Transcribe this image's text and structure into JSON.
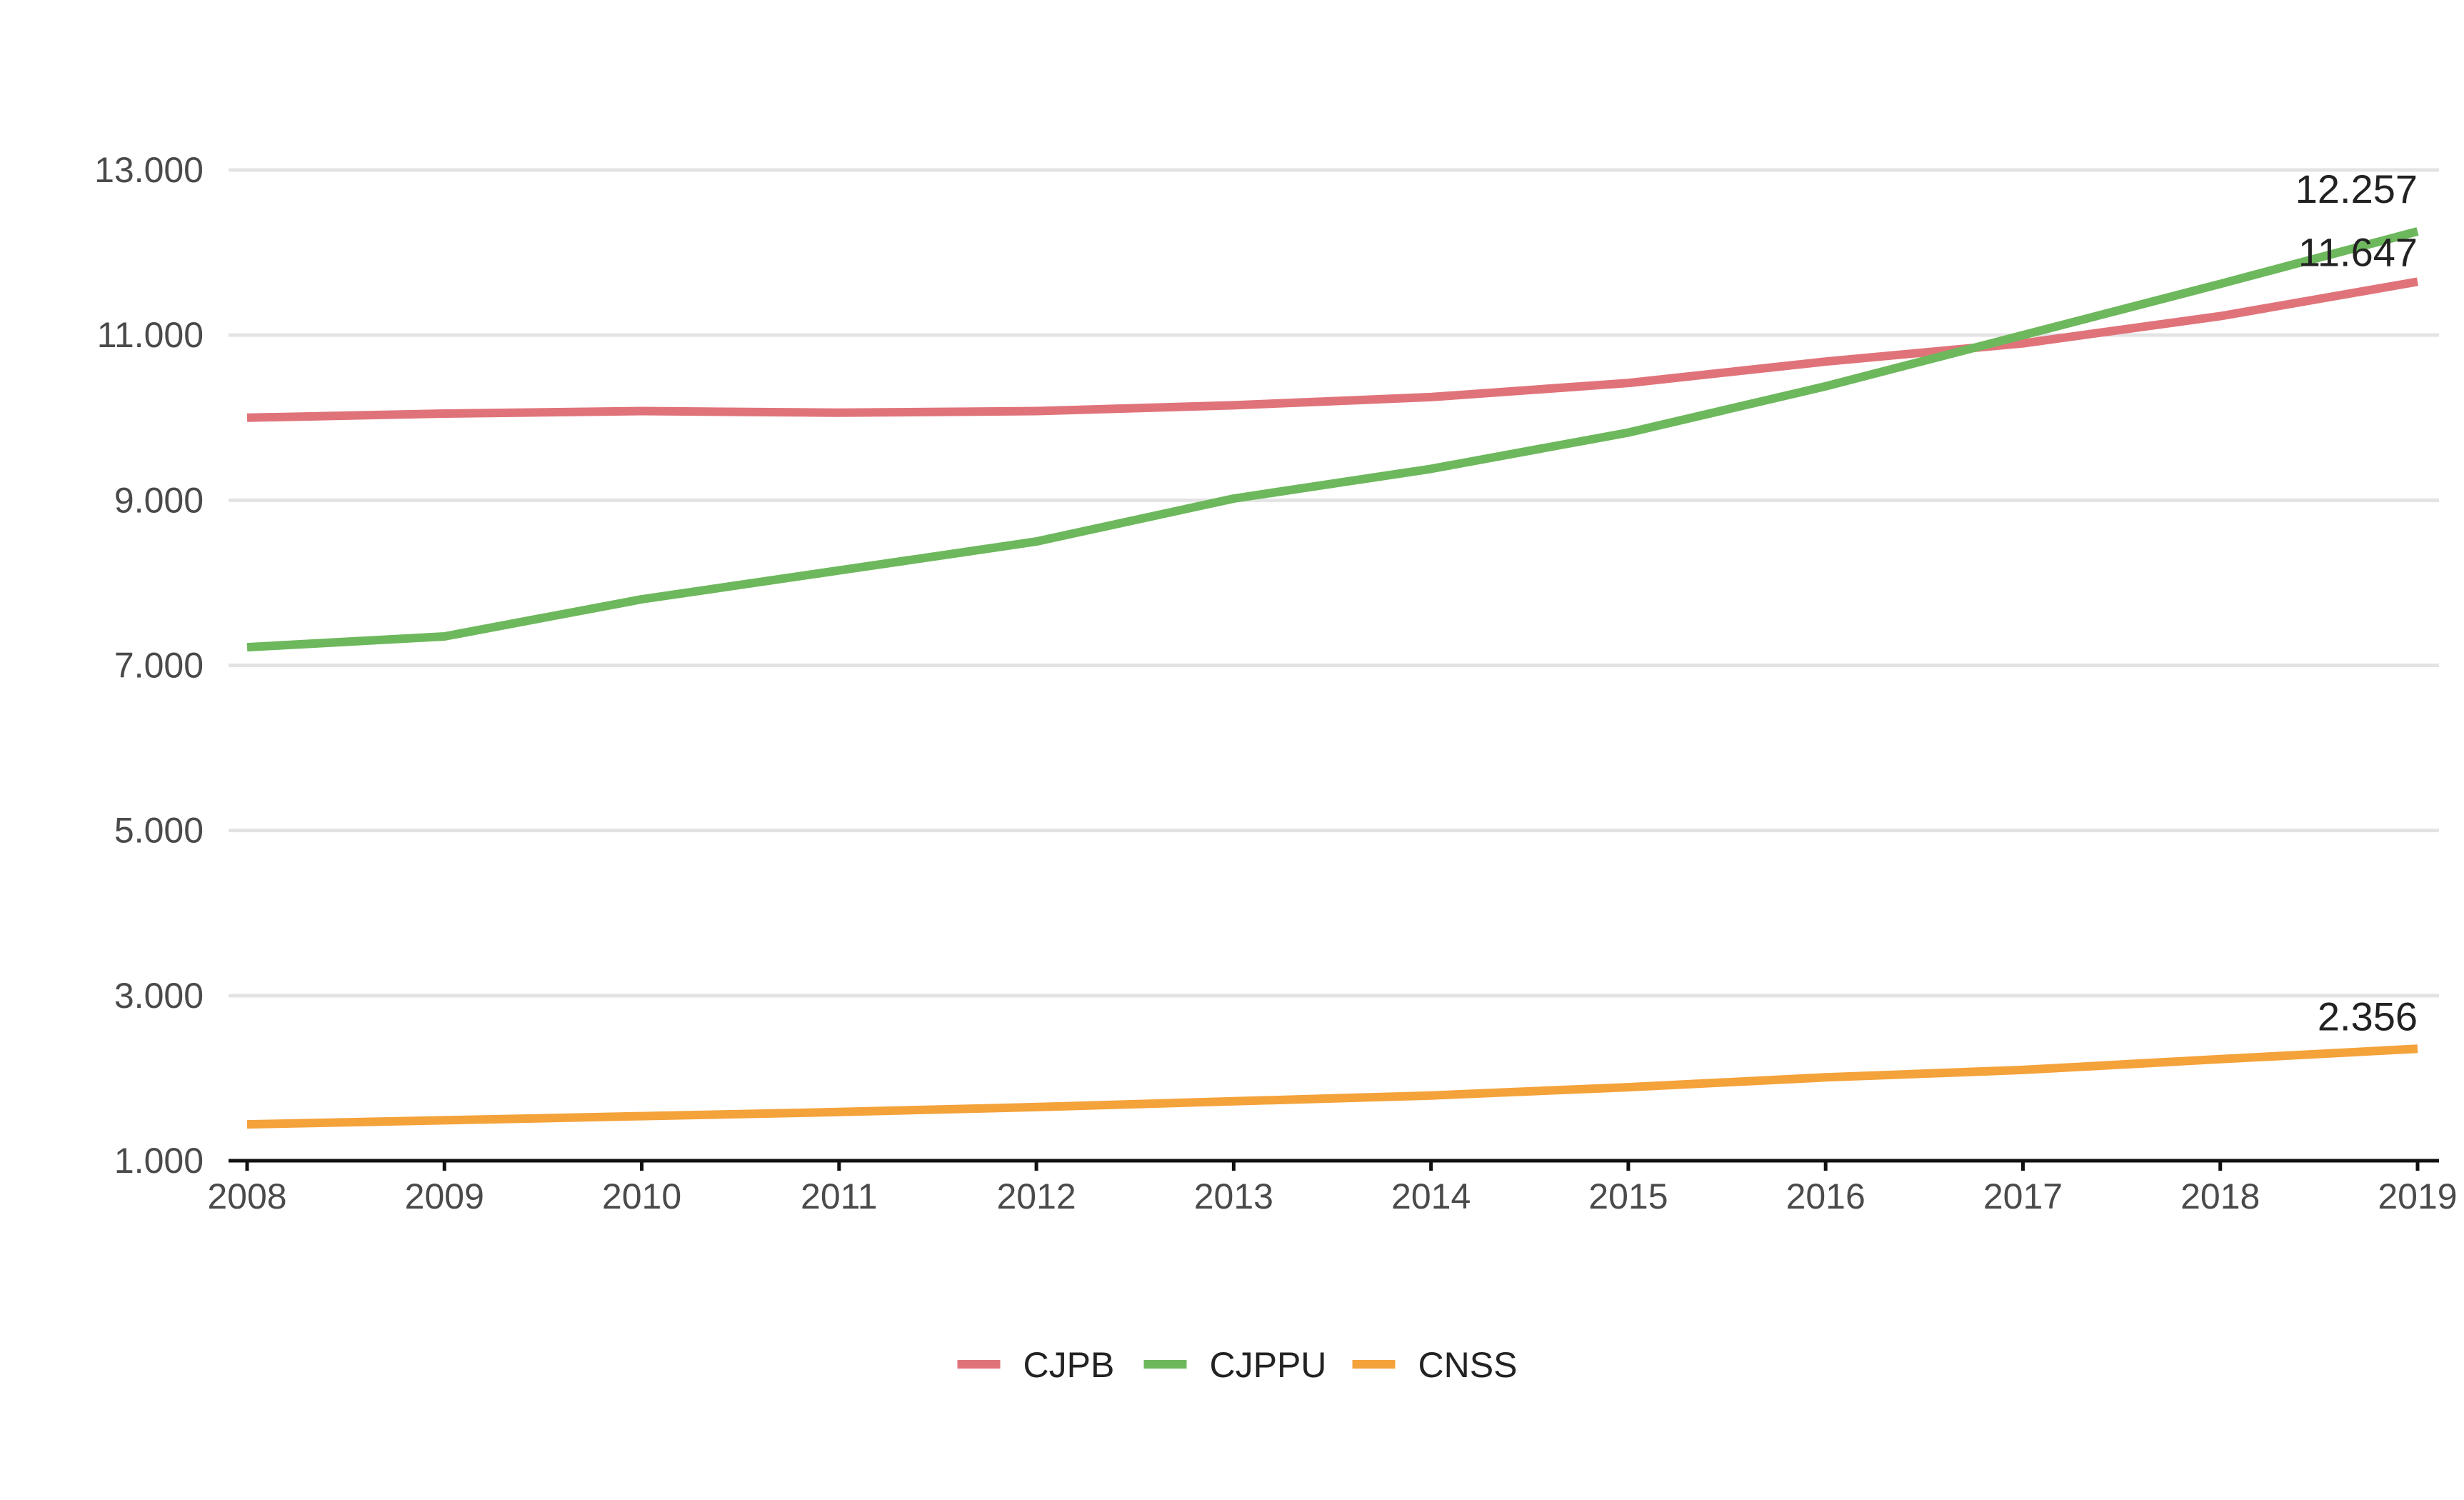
{
  "chart_data": {
    "type": "line",
    "title": "",
    "xlabel": "",
    "ylabel": "",
    "x": [
      2008,
      2009,
      2010,
      2011,
      2012,
      2013,
      2014,
      2015,
      2016,
      2017,
      2018,
      2019
    ],
    "xlim": [
      2008,
      2019
    ],
    "ylim": [
      1000,
      13000
    ],
    "y_ticks": [
      1000,
      3000,
      5000,
      7000,
      9000,
      11000,
      13000
    ],
    "y_tick_labels": [
      "1.000",
      "3.000",
      "5.000",
      "7.000",
      "9.000",
      "11.000",
      "13.000"
    ],
    "x_tick_labels": [
      "2008",
      "2009",
      "2010",
      "2011",
      "2012",
      "2013",
      "2014",
      "2015",
      "2016",
      "2017",
      "2018",
      "2019"
    ],
    "grid": "horizontal",
    "legend_position": "bottom-center",
    "series": [
      {
        "name": "CJPB",
        "color": "#e0737a",
        "values": [
          10000,
          10050,
          10080,
          10060,
          10080,
          10150,
          10250,
          10420,
          10680,
          10900,
          11230,
          11647
        ],
        "end_label": "11.647"
      },
      {
        "name": "CJPPU",
        "color": "#6db85c",
        "values": [
          7220,
          7350,
          7800,
          8150,
          8500,
          9020,
          9380,
          9820,
          10380,
          11000,
          11620,
          12257
        ],
        "end_label": "12.257"
      },
      {
        "name": "CNSS",
        "color": "#f4a23a",
        "values": [
          1440,
          1490,
          1540,
          1590,
          1650,
          1720,
          1790,
          1890,
          2010,
          2100,
          2230,
          2356
        ],
        "end_label": "2.356"
      }
    ]
  }
}
